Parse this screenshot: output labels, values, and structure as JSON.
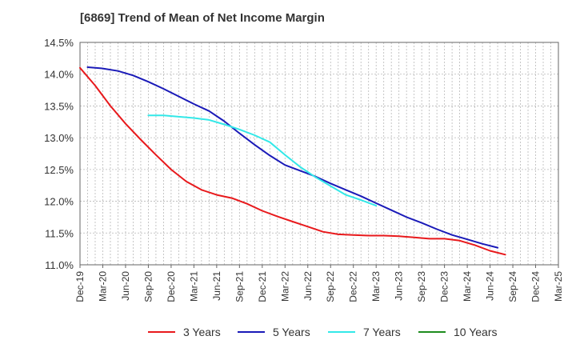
{
  "title": "[6869]  Trend of Mean of Net Income Margin",
  "colors": {
    "grid": "#b8b8b8",
    "axis": "#666666",
    "text": "#333333"
  },
  "chart_data": {
    "type": "line",
    "title": "[6869]  Trend of Mean of Net Income Margin",
    "xlabel": "",
    "ylabel": "",
    "x_ticks": [
      "Dec-19",
      "Mar-20",
      "Jun-20",
      "Sep-20",
      "Dec-20",
      "Mar-21",
      "Jun-21",
      "Sep-21",
      "Dec-21",
      "Mar-22",
      "Jun-22",
      "Sep-22",
      "Dec-22",
      "Mar-23",
      "Jun-23",
      "Sep-23",
      "Dec-23",
      "Mar-24",
      "Jun-24",
      "Sep-24",
      "Dec-24",
      "Mar-25"
    ],
    "y_ticks": [
      "11.0%",
      "11.5%",
      "12.0%",
      "12.5%",
      "13.0%",
      "13.5%",
      "14.0%",
      "14.5%"
    ],
    "ylim": [
      11.0,
      14.5
    ],
    "y_unit": "%",
    "grid": true,
    "legend_position": "bottom",
    "series": [
      {
        "name": "3 Years",
        "color": "#e8191c",
        "start_index": 0,
        "values": [
          14.1,
          13.82,
          13.5,
          13.22,
          12.97,
          12.73,
          12.5,
          12.31,
          12.18,
          12.1,
          12.05,
          11.96,
          11.85,
          11.76,
          11.68,
          11.6,
          11.52,
          11.48,
          11.47,
          11.46,
          11.46,
          11.45,
          11.43,
          11.41,
          11.41,
          11.38,
          11.31,
          11.22,
          11.16
        ]
      },
      {
        "name": "5 Years",
        "color": "#1a1ab8",
        "start_index": 1,
        "values": [
          14.11,
          14.09,
          14.05,
          13.98,
          13.88,
          13.77,
          13.65,
          13.53,
          13.42,
          13.26,
          13.07,
          12.89,
          12.72,
          12.57,
          12.48,
          12.39,
          12.28,
          12.18,
          12.08,
          11.97,
          11.86,
          11.75,
          11.66,
          11.56,
          11.47,
          11.4,
          11.33,
          11.27
        ]
      },
      {
        "name": "7 Years",
        "color": "#33e8e8",
        "start_index": 9,
        "values": [
          13.35,
          13.35,
          13.33,
          13.31,
          13.28,
          13.21,
          13.13,
          13.04,
          12.93,
          12.73,
          12.54,
          12.38,
          12.24,
          12.1,
          12.02,
          11.93
        ]
      },
      {
        "name": "10 Years",
        "color": "#1e8c1e",
        "start_index": 0,
        "values": []
      }
    ]
  }
}
